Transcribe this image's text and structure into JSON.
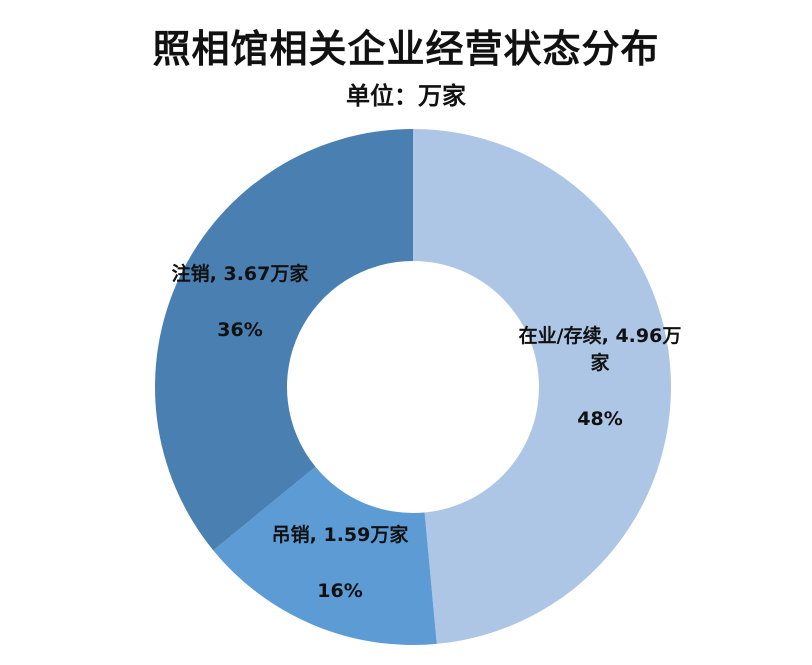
{
  "title": "照相馆相关企业经营状态分布",
  "subtitle": "单位：万家",
  "chart_data": {
    "type": "pie",
    "title": "照相馆相关企业经营状态分布",
    "subtitle": "单位：万家",
    "donut": true,
    "start": "top, clockwise",
    "slices": [
      {
        "label": "在业/存续",
        "value": 4.96,
        "unit": "万家",
        "percent": "48%",
        "color": "#aec6e6",
        "label_lines": [
          "在业/存续, 4.96万",
          "家"
        ]
      },
      {
        "label": "吊销",
        "value": 1.59,
        "unit": "万家",
        "percent": "16%",
        "color": "#5d9bd5",
        "label_lines": [
          "吊销, 1.59万家"
        ]
      },
      {
        "label": "注销",
        "value": 3.67,
        "unit": "万家",
        "percent": "36%",
        "color": "#4a7fb2",
        "label_lines": [
          "注销, 3.67万家"
        ]
      }
    ]
  }
}
